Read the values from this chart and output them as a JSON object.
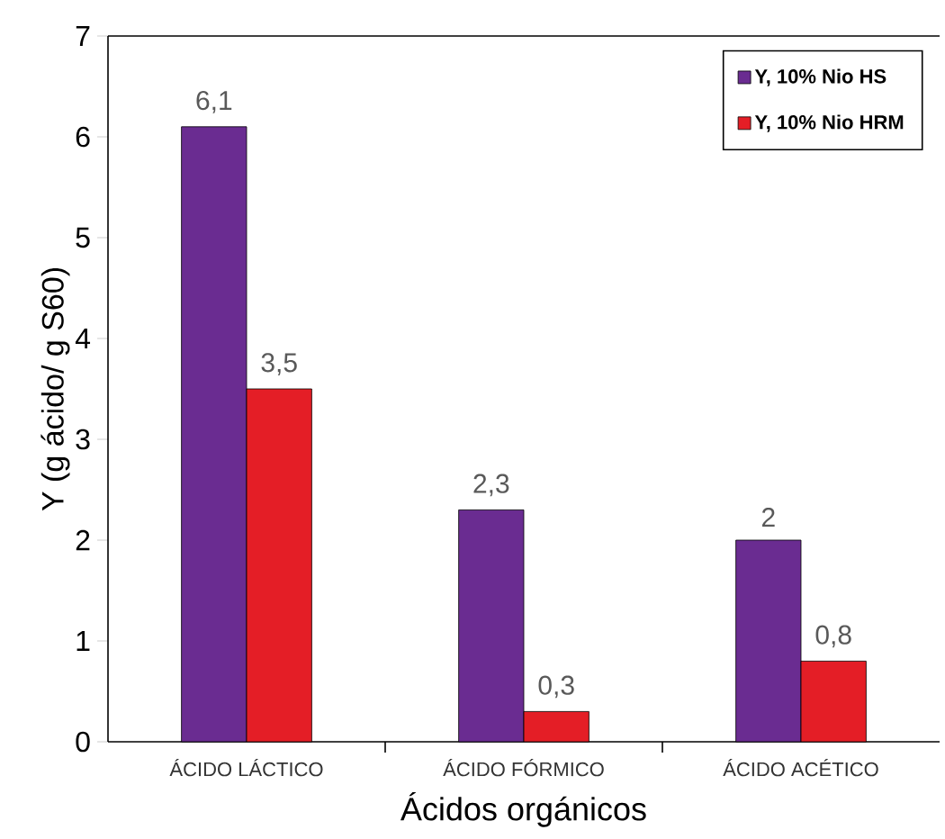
{
  "chart_data": {
    "type": "bar",
    "xlabel": "Ácidos orgánicos",
    "ylabel": "Y (g ácido/ g S60)",
    "categories": [
      "ÁCIDO LÁCTICO",
      "ÁCIDO FÓRMICO",
      "ÁCIDO ACÉTICO"
    ],
    "series": [
      {
        "name": "Y, 10% Nio HS",
        "color": "#6a2c91",
        "values": [
          6.1,
          2.3,
          2
        ],
        "value_labels": [
          "6,1",
          "2,3",
          "2"
        ]
      },
      {
        "name": "Y, 10% Nio HRM",
        "color": "#e41e26",
        "values": [
          3.5,
          0.3,
          0.8
        ],
        "value_labels": [
          "3,5",
          "0,3",
          "0,8"
        ]
      }
    ],
    "ylim": [
      0,
      7
    ],
    "yticks": [
      0,
      1,
      2,
      3,
      4,
      5,
      6,
      7
    ],
    "legend": "top right",
    "grid": false
  }
}
